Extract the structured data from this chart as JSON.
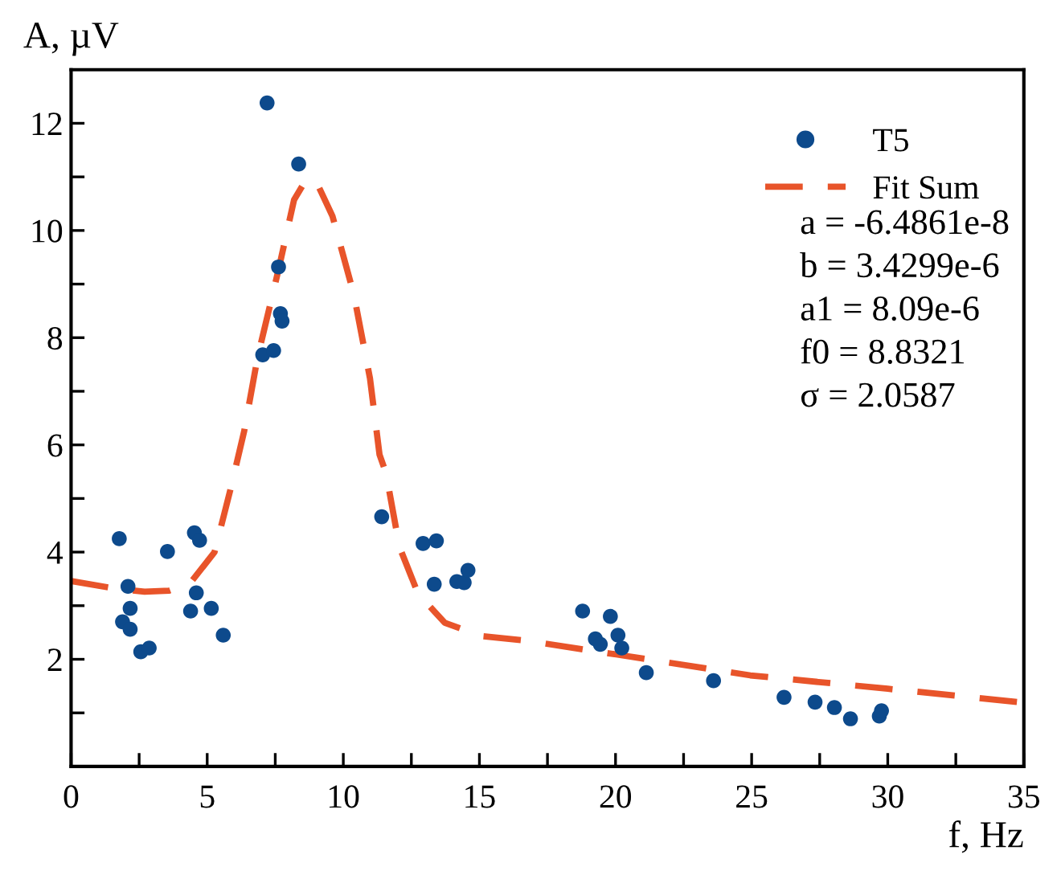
{
  "chart_data": {
    "type": "scatter",
    "xlabel": "f, Hz",
    "ylabel": "A, µV",
    "xlim": [
      0,
      35
    ],
    "ylim": [
      0,
      13
    ],
    "xticks": [
      0,
      {
        "value": 2.5,
        "label": null
      },
      5,
      {
        "value": 7.5,
        "label": null
      },
      10,
      {
        "value": 12.5,
        "label": null
      },
      15,
      {
        "value": 17.5,
        "label": null
      },
      20,
      {
        "value": 22.5,
        "label": null
      },
      25,
      {
        "value": 27.5,
        "label": null
      },
      30,
      {
        "value": 32.5,
        "label": null
      },
      35
    ],
    "yticks": [
      {
        "value": 1,
        "label": null
      },
      2,
      {
        "value": 3,
        "label": null
      },
      4,
      {
        "value": 5,
        "label": null
      },
      6,
      {
        "value": 7,
        "label": null
      },
      8,
      {
        "value": 9,
        "label": null
      },
      10,
      {
        "value": 11,
        "label": null
      },
      12
    ],
    "grid": false,
    "legend": "top right",
    "series": [
      {
        "name": "T5",
        "marker": "circle",
        "color": "#0d4a8c",
        "x": [
          7.2,
          8.36,
          7.62,
          7.69,
          7.75,
          7.04,
          7.44,
          1.77,
          2.09,
          2.17,
          1.89,
          2.17,
          2.56,
          2.87,
          3.54,
          4.53,
          4.72,
          4.6,
          4.39,
          5.15,
          5.59,
          11.41,
          12.93,
          13.42,
          13.34,
          14.17,
          14.44,
          14.58,
          18.79,
          19.26,
          19.44,
          19.81,
          20.09,
          20.23,
          21.13,
          23.6,
          26.19,
          27.33,
          28.04,
          28.63,
          29.69,
          29.77
        ],
        "values": [
          12.38,
          11.24,
          9.32,
          8.45,
          8.31,
          7.68,
          7.76,
          4.25,
          3.36,
          2.95,
          2.7,
          2.56,
          2.14,
          2.21,
          4.01,
          4.36,
          4.22,
          3.24,
          2.9,
          2.95,
          2.45,
          4.66,
          4.16,
          4.21,
          3.4,
          3.45,
          3.43,
          3.66,
          2.9,
          2.38,
          2.28,
          2.8,
          2.45,
          2.21,
          1.75,
          1.6,
          1.29,
          1.2,
          1.1,
          0.89,
          0.94,
          1.04
        ]
      },
      {
        "name": "Fit Sum",
        "type": "line",
        "marker": "none",
        "line_style": "dashed",
        "color": "#e8542a",
        "x": [
          0,
          1.5,
          2.7,
          3.6,
          4.39,
          5.27,
          5.86,
          6.36,
          6.85,
          7.63,
          8.19,
          8.62,
          9.01,
          9.6,
          10.39,
          10.98,
          11.33,
          11.57,
          12.06,
          12.75,
          13.73,
          15.11,
          16.69,
          20.03,
          24.95,
          30,
          35
        ],
        "values": [
          3.46,
          3.33,
          3.26,
          3.28,
          3.43,
          4.0,
          5.18,
          6.26,
          7.63,
          9.29,
          10.57,
          10.94,
          10.91,
          10.27,
          8.8,
          7.24,
          5.82,
          5.47,
          4.1,
          3.22,
          2.68,
          2.43,
          2.35,
          2.09,
          1.7,
          1.45,
          1.19
        ]
      }
    ],
    "annotations": [
      "a = -6.4861e-8",
      "b = 3.4299e-6",
      "a1 = 8.09e-6",
      "f0 = 8.8321",
      "σ = 2.0587"
    ]
  }
}
